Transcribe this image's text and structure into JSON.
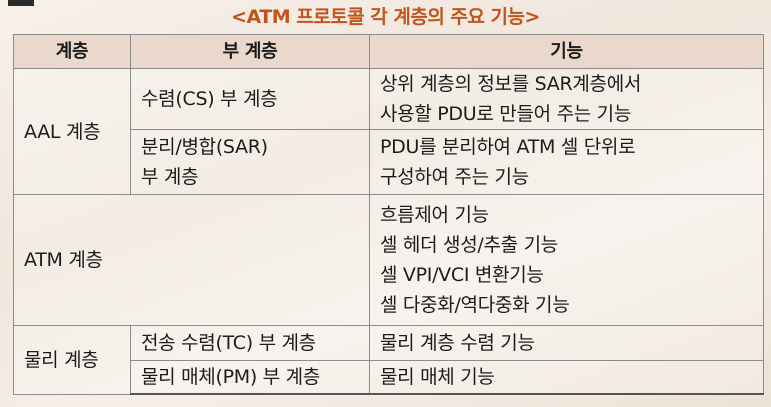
{
  "title": "<ATM 프로토콜 각 계층의 주요 기능>",
  "table": {
    "headers": [
      "계층",
      "부 계층",
      "기능"
    ],
    "aal": {
      "layer": "AAL 계층",
      "cs_sub": "수렴(CS) 부 계층",
      "cs_func": [
        "상위 계층의 정보를 SAR계층에서",
        "사용할 PDU로 만들어 주는 기능"
      ],
      "sar_sub": [
        "분리/병합(SAR)",
        "부 계층"
      ],
      "sar_func": [
        "PDU를 분리하여 ATM 셀 단위로",
        "구성하여 주는 기능"
      ]
    },
    "atm": {
      "layer": "ATM 계층",
      "func": [
        "흐름제어 기능",
        "셀 헤더 생성/추출 기능",
        "셀 VPI/VCI 변환기능",
        "셀 다중화/역다중화 기능"
      ]
    },
    "physical": {
      "layer": "물리 계층",
      "tc_sub": "전송 수렴(TC) 부 계층",
      "tc_func": "물리 계층 수렴 기능",
      "pm_sub": "물리 매체(PM) 부 계층",
      "pm_func": "물리 매체 기능"
    }
  }
}
